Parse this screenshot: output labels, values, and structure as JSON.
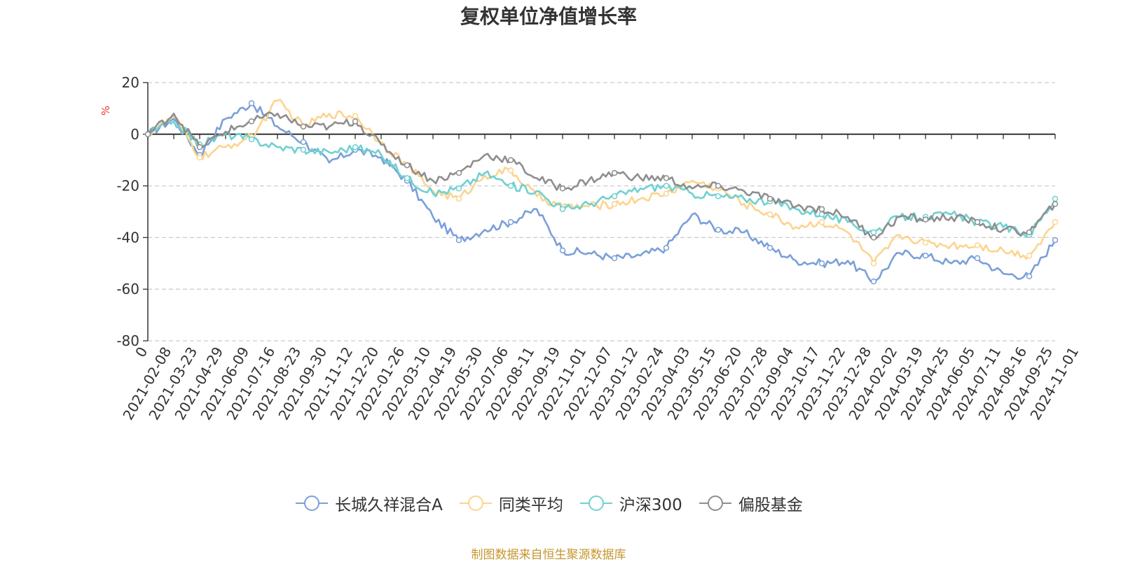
{
  "chart_data": {
    "type": "line",
    "title": "复权单位净值增长率",
    "ylabel": "%",
    "ylim": [
      -80,
      20
    ],
    "yticks": [
      20,
      0,
      -20,
      -40,
      -60,
      -80
    ],
    "x_start_label": "0",
    "categories": [
      "2021-02-08",
      "2021-03-23",
      "2021-04-29",
      "2021-06-09",
      "2021-07-16",
      "2021-08-23",
      "2021-09-30",
      "2021-11-12",
      "2021-12-20",
      "2022-01-26",
      "2022-03-10",
      "2022-04-19",
      "2022-05-30",
      "2022-07-06",
      "2022-08-11",
      "2022-09-19",
      "2022-11-01",
      "2022-12-07",
      "2023-01-12",
      "2023-02-24",
      "2023-04-03",
      "2023-05-15",
      "2023-06-20",
      "2023-07-28",
      "2023-09-04",
      "2023-10-17",
      "2023-11-22",
      "2023-12-28",
      "2024-02-02",
      "2024-03-19",
      "2024-04-25",
      "2024-06-05",
      "2024-07-11",
      "2024-08-16",
      "2024-09-25",
      "2024-11-01"
    ],
    "series": [
      {
        "name": "长城久祥混合A",
        "color": "#7b9fd8",
        "values": [
          0,
          6,
          -8,
          6,
          12,
          3,
          -3,
          -11,
          -6,
          -9,
          -18,
          -32,
          -41,
          -37,
          -34,
          -29,
          -45,
          -46,
          -48,
          -47,
          -44,
          -31,
          -37,
          -38,
          -44,
          -49,
          -50,
          -49,
          -57,
          -46,
          -47,
          -50,
          -48,
          -54,
          -55,
          -41
        ]
      },
      {
        "name": "同类平均",
        "color": "#fcd48f",
        "values": [
          0,
          7,
          -9,
          -5,
          -1,
          13,
          3,
          8,
          7,
          -3,
          -12,
          -22,
          -25,
          -16,
          -14,
          -24,
          -28,
          -28,
          -27,
          -25,
          -23,
          -18,
          -21,
          -27,
          -31,
          -36,
          -34,
          -38,
          -50,
          -39,
          -42,
          -43,
          -43,
          -45,
          -47,
          -34
        ]
      },
      {
        "name": "沪深300",
        "color": "#6fd1d1",
        "values": [
          0,
          5,
          -4,
          0,
          -2,
          -5,
          -6,
          -7,
          -5,
          -8,
          -17,
          -23,
          -21,
          -15,
          -20,
          -22,
          -29,
          -27,
          -24,
          -21,
          -20,
          -23,
          -24,
          -25,
          -26,
          -29,
          -31,
          -34,
          -38,
          -32,
          -32,
          -31,
          -34,
          -36,
          -39,
          -25
        ]
      },
      {
        "name": "偏股基金",
        "color": "#8e8e8e",
        "values": [
          0,
          8,
          -5,
          1,
          5,
          8,
          3,
          3,
          5,
          -4,
          -12,
          -18,
          -15,
          -8,
          -10,
          -17,
          -21,
          -18,
          -15,
          -17,
          -17,
          -21,
          -20,
          -22,
          -25,
          -28,
          -29,
          -32,
          -40,
          -32,
          -33,
          -32,
          -34,
          -37,
          -38,
          -27
        ]
      }
    ]
  },
  "source_note": "制图数据来自恒生聚源数据库"
}
